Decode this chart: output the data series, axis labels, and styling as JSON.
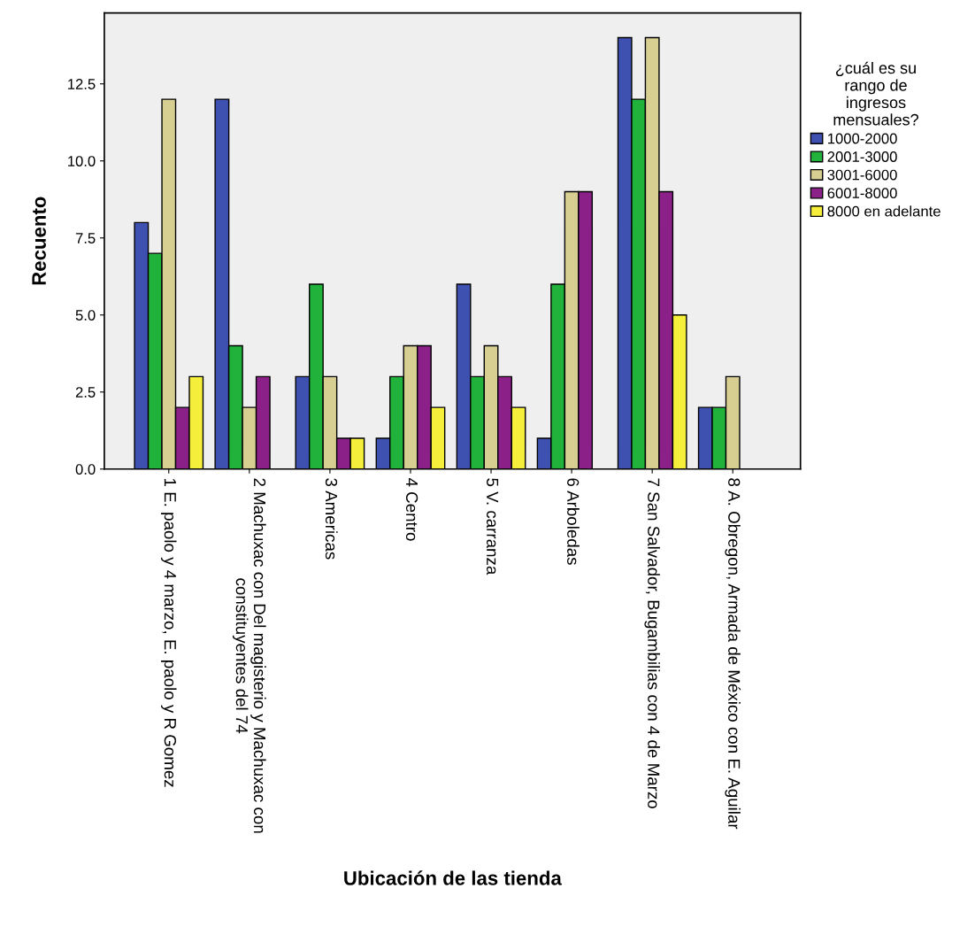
{
  "chart_data": {
    "type": "bar",
    "xlabel": "Ubicación de las tienda",
    "ylabel": "Recuento",
    "legend_title": "¿cuál es su\nrango de\ningresos\nmensuales?",
    "categories": [
      "1 E. paolo y 4 marzo, E. paolo y R Gomez",
      "2 Machuxac con Del magisterio y Machuxac con\nconstituyentes del 74",
      "3 Americas",
      "4 Centro",
      "5 V. carranza",
      "6 Arboledas",
      "7 San Salvador, Bugambilias con 4 de Marzo",
      "8 A. Obregon, Armada de México con E. Aguilar"
    ],
    "series": [
      {
        "name": "1000-2000",
        "color": "#3f51b0",
        "values": [
          8,
          12,
          3,
          1,
          6,
          1,
          14,
          2
        ]
      },
      {
        "name": "2001-3000",
        "color": "#21b23b",
        "values": [
          7,
          4,
          6,
          3,
          3,
          6,
          12,
          2
        ]
      },
      {
        "name": "3001-6000",
        "color": "#d7cf92",
        "values": [
          12,
          2,
          3,
          4,
          4,
          9,
          14,
          3
        ]
      },
      {
        "name": "6001-8000",
        "color": "#8b2188",
        "values": [
          2,
          3,
          1,
          4,
          3,
          9,
          9,
          null
        ]
      },
      {
        "name": "8000 en adelante",
        "color": "#f5ef3b",
        "values": [
          3,
          null,
          1,
          2,
          2,
          null,
          5,
          null
        ]
      }
    ],
    "ylim": [
      0,
      14.8
    ],
    "yticks": [
      {
        "value": 0,
        "label": "0.0"
      },
      {
        "value": 2.5,
        "label": "2.5"
      },
      {
        "value": 5,
        "label": "5.0"
      },
      {
        "value": 7.5,
        "label": "7.5"
      },
      {
        "value": 10,
        "label": "10.0"
      },
      {
        "value": 12.5,
        "label": "12.5"
      }
    ],
    "grid": false,
    "legend": "right"
  }
}
